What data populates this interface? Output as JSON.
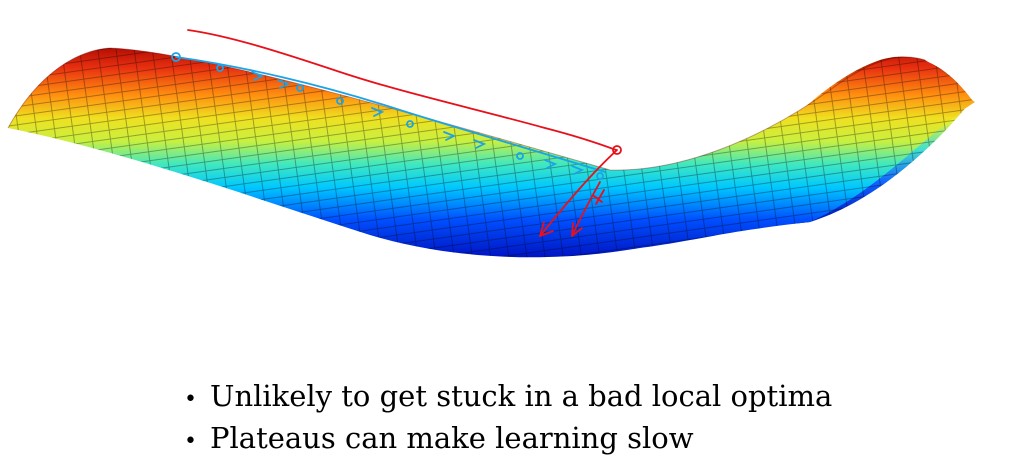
{
  "slide": {
    "bullets": [
      {
        "mark": "•",
        "text": "Unlikely to get stuck in a bad local optima"
      },
      {
        "mark": "•",
        "text": "Plateaus can make learning slow"
      }
    ]
  },
  "figure": {
    "surface_colormap": [
      "#0000b0",
      "#0050ff",
      "#00c8ff",
      "#40e8c0",
      "#c8f040",
      "#f0e020",
      "#ff9010",
      "#e83010",
      "#a00000"
    ],
    "annotation_colors": {
      "saddle_path": "#1aa3e8",
      "freehand_line": "#e8101a",
      "escape_arrows": "#e8101a"
    }
  }
}
